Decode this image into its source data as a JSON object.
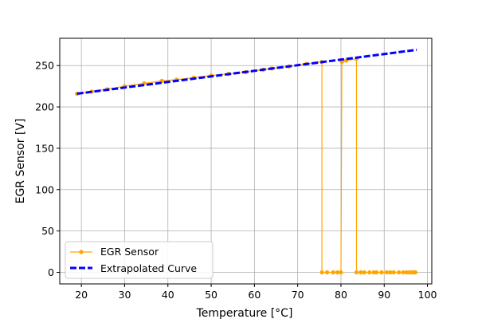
{
  "chart_data": {
    "type": "line",
    "xlabel": "Temperature [°C]",
    "ylabel": "EGR Sensor [V]",
    "xlim": [
      15,
      101
    ],
    "ylim": [
      -14,
      283
    ],
    "xticks": [
      20,
      30,
      40,
      50,
      60,
      70,
      80,
      90,
      100
    ],
    "yticks": [
      0,
      50,
      100,
      150,
      200,
      250
    ],
    "grid": true,
    "legend": {
      "position": "lower-left"
    },
    "series": [
      {
        "name": "EGR Sensor",
        "style": "solid-line-with-markers",
        "color": "#FFA500",
        "points": [
          [
            19,
            216
          ],
          [
            22.4,
            218.5
          ],
          [
            26,
            221.5
          ],
          [
            30,
            225
          ],
          [
            34.5,
            228.5
          ],
          [
            38.6,
            231.5
          ],
          [
            42,
            233
          ],
          [
            46,
            235.5
          ],
          [
            50,
            238
          ],
          [
            54,
            240
          ],
          [
            58,
            242
          ],
          [
            62,
            245
          ],
          [
            64,
            246.5
          ],
          [
            68,
            249
          ],
          [
            72,
            252
          ],
          [
            75.6,
            254.5
          ],
          [
            75.6,
            0
          ],
          [
            76.8,
            0
          ],
          [
            78.2,
            0
          ],
          [
            79.2,
            0
          ],
          [
            80,
            0
          ],
          [
            80.2,
            254.5
          ],
          [
            81.2,
            256
          ],
          [
            83.6,
            258
          ],
          [
            83.6,
            0
          ],
          [
            84.6,
            0
          ],
          [
            85.4,
            0
          ],
          [
            86.6,
            0
          ],
          [
            87.6,
            0
          ],
          [
            88.2,
            0
          ],
          [
            89.4,
            0
          ],
          [
            90.6,
            0
          ],
          [
            91.4,
            0
          ],
          [
            92.2,
            0
          ],
          [
            93.4,
            0
          ],
          [
            94.4,
            0
          ],
          [
            95.2,
            0
          ],
          [
            95.8,
            0
          ],
          [
            96.4,
            0
          ],
          [
            96.8,
            0
          ],
          [
            97.2,
            0
          ]
        ]
      },
      {
        "name": "Extrapolated Curve",
        "style": "dashed-line",
        "color": "#0000FF",
        "points": [
          [
            19,
            216
          ],
          [
            97.5,
            269
          ]
        ]
      }
    ]
  }
}
